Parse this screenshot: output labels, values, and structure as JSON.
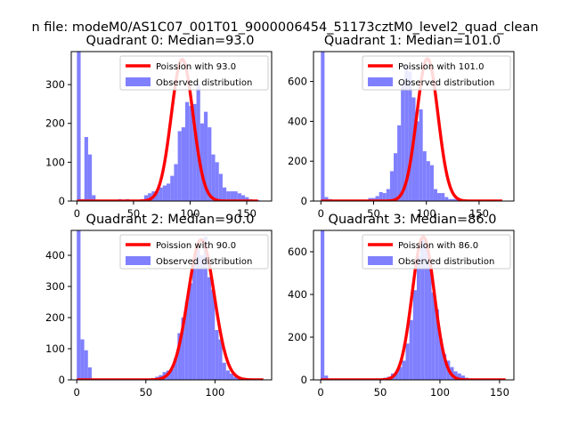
{
  "figure": {
    "suptitle": "n file: modeM0/AS1C07_001T01_9000006454_51173cztM0_level2_quad_clean"
  },
  "colors": {
    "histogram": "#8080ff",
    "poisson": "#ff0000",
    "axes": "#000000",
    "background": "#ffffff"
  },
  "chart_data": [
    {
      "type": "bar",
      "title": "Quadrant 0: Median=93.0",
      "xlim": [
        -5,
        172
      ],
      "ylim": [
        0,
        385
      ],
      "xticks": [
        0,
        50,
        100,
        150
      ],
      "yticks": [
        0,
        100,
        200,
        300
      ],
      "legend": {
        "placement": "top-right",
        "entries": [
          "Poission with 93.0",
          "Observed distribution"
        ]
      },
      "series": [
        {
          "name": "Observed distribution",
          "kind": "histogram",
          "bin_start": 0,
          "bin_width": 3.3,
          "values": [
            385,
            5,
            165,
            120,
            15,
            0,
            0,
            3,
            2,
            0,
            3,
            5,
            0,
            5,
            3,
            3,
            2,
            5,
            15,
            20,
            25,
            25,
            35,
            40,
            45,
            65,
            95,
            180,
            190,
            255,
            245,
            250,
            300,
            200,
            230,
            190,
            120,
            100,
            70,
            35,
            25,
            25,
            25,
            20,
            15,
            10,
            5,
            3,
            2,
            0
          ]
        },
        {
          "name": "Poission with 93.0",
          "kind": "line",
          "mean": 93.0,
          "peak": 365,
          "xrange": [
            0,
            160
          ]
        }
      ]
    },
    {
      "type": "bar",
      "title": "Quadrant 1: Median=101.0",
      "xlim": [
        -7,
        183
      ],
      "ylim": [
        0,
        750
      ],
      "xticks": [
        0,
        50,
        100,
        150
      ],
      "yticks": [
        0,
        200,
        400,
        600
      ],
      "legend": {
        "placement": "top-right",
        "entries": [
          "Poission with 101.0",
          "Observed distribution"
        ]
      },
      "series": [
        {
          "name": "Observed distribution",
          "kind": "histogram",
          "bin_start": 0,
          "bin_width": 3.45,
          "values": [
            750,
            20,
            10,
            5,
            2,
            0,
            0,
            0,
            0,
            0,
            3,
            5,
            5,
            15,
            15,
            25,
            45,
            40,
            60,
            150,
            240,
            380,
            600,
            680,
            650,
            520,
            400,
            460,
            250,
            200,
            180,
            60,
            40,
            40,
            20,
            10,
            10,
            10,
            5,
            5,
            3,
            0,
            0,
            0,
            0,
            0,
            0,
            0,
            0,
            0
          ]
        },
        {
          "name": "Poission with 101.0",
          "kind": "line",
          "mean": 101.0,
          "peak": 715,
          "xrange": [
            0,
            172
          ]
        }
      ]
    },
    {
      "type": "bar",
      "title": "Quadrant 2: Median=90.0",
      "xlim": [
        -4,
        141
      ],
      "ylim": [
        0,
        480
      ],
      "xticks": [
        0,
        50,
        100
      ],
      "yticks": [
        0,
        100,
        200,
        300,
        400
      ],
      "legend": {
        "placement": "top-right",
        "entries": [
          "Poission with 90.0",
          "Observed distribution"
        ]
      },
      "series": [
        {
          "name": "Observed distribution",
          "kind": "histogram",
          "bin_start": 0,
          "bin_width": 2.7,
          "values": [
            480,
            130,
            95,
            40,
            2,
            0,
            0,
            0,
            0,
            0,
            0,
            2,
            0,
            0,
            0,
            0,
            0,
            0,
            0,
            3,
            5,
            10,
            15,
            25,
            30,
            35,
            70,
            150,
            200,
            250,
            310,
            380,
            420,
            400,
            460,
            330,
            290,
            160,
            130,
            55,
            30,
            20,
            10,
            5,
            3,
            2,
            0,
            0,
            0,
            0
          ]
        },
        {
          "name": "Poission with 90.0",
          "kind": "line",
          "mean": 90.0,
          "peak": 450,
          "xrange": [
            0,
            135
          ]
        }
      ]
    },
    {
      "type": "bar",
      "title": "Quadrant 3: Median=86.0",
      "xlim": [
        -6,
        162
      ],
      "ylim": [
        0,
        700
      ],
      "xticks": [
        0,
        50,
        100,
        150
      ],
      "yticks": [
        0,
        200,
        400,
        600
      ],
      "legend": {
        "placement": "top-right",
        "entries": [
          "Poission with 86.0",
          "Observed distribution"
        ]
      },
      "series": [
        {
          "name": "Observed distribution",
          "kind": "histogram",
          "bin_start": 0,
          "bin_width": 3.1,
          "values": [
            700,
            20,
            5,
            3,
            0,
            0,
            0,
            0,
            0,
            0,
            0,
            0,
            0,
            2,
            2,
            3,
            5,
            10,
            15,
            30,
            35,
            60,
            90,
            170,
            280,
            420,
            580,
            660,
            640,
            560,
            410,
            330,
            190,
            120,
            90,
            60,
            40,
            30,
            20,
            10,
            5,
            3,
            3,
            2,
            2,
            2,
            2,
            1,
            1,
            1
          ]
        },
        {
          "name": "Poission with 86.0",
          "kind": "line",
          "mean": 86.0,
          "peak": 670,
          "xrange": [
            0,
            155
          ]
        }
      ]
    }
  ]
}
